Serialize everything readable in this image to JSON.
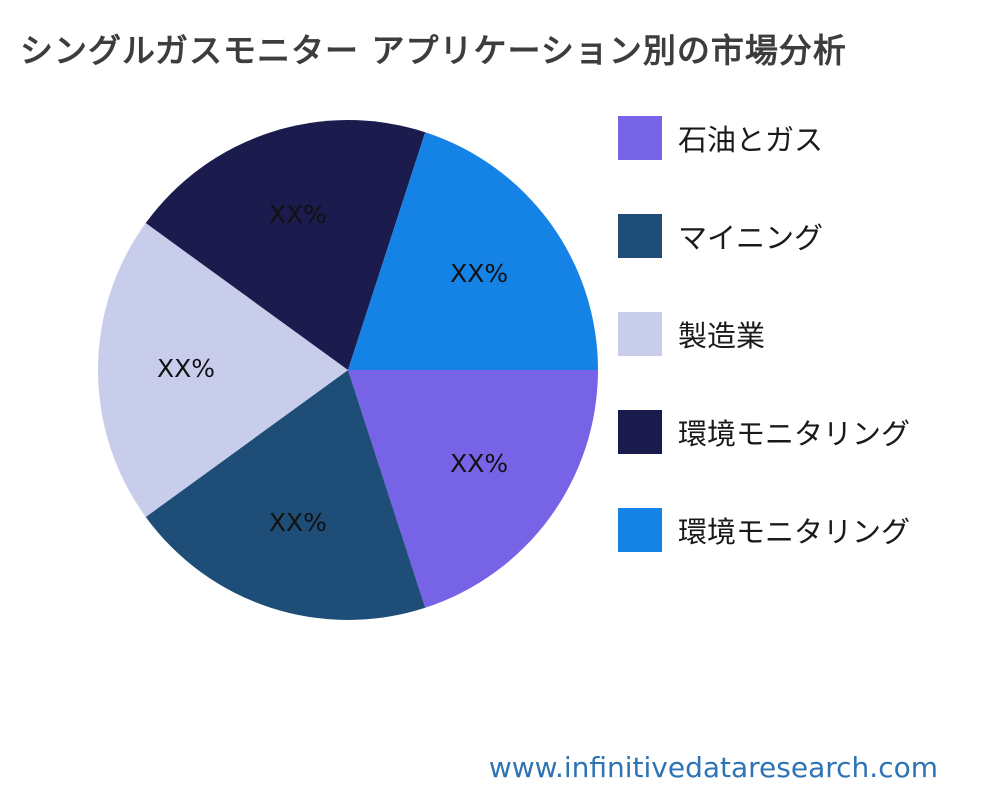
{
  "title": "シングルガスモニター アプリケーション別の市場分析",
  "watermark": "www.infinitivedataresearch.com",
  "chart_data": {
    "type": "pie",
    "title": "シングルガスモニター アプリケーション別の市場分析",
    "start_angle_deg": 0,
    "direction": "clockwise",
    "legend_position": "right",
    "slices": [
      {
        "label": "石油とガス",
        "value": 20,
        "display": "XX%",
        "color": "#7663e6"
      },
      {
        "label": "マイニング",
        "value": 20,
        "display": "XX%",
        "color": "#1e4e78"
      },
      {
        "label": "製造業",
        "value": 20,
        "display": "XX%",
        "color": "#c9cdec"
      },
      {
        "label": "環境モニタリング",
        "value": 20,
        "display": "XX%",
        "color": "#1b1b4e"
      },
      {
        "label": "環境モニタリング",
        "value": 20,
        "display": "XX%",
        "color": "#1583e6"
      }
    ]
  }
}
